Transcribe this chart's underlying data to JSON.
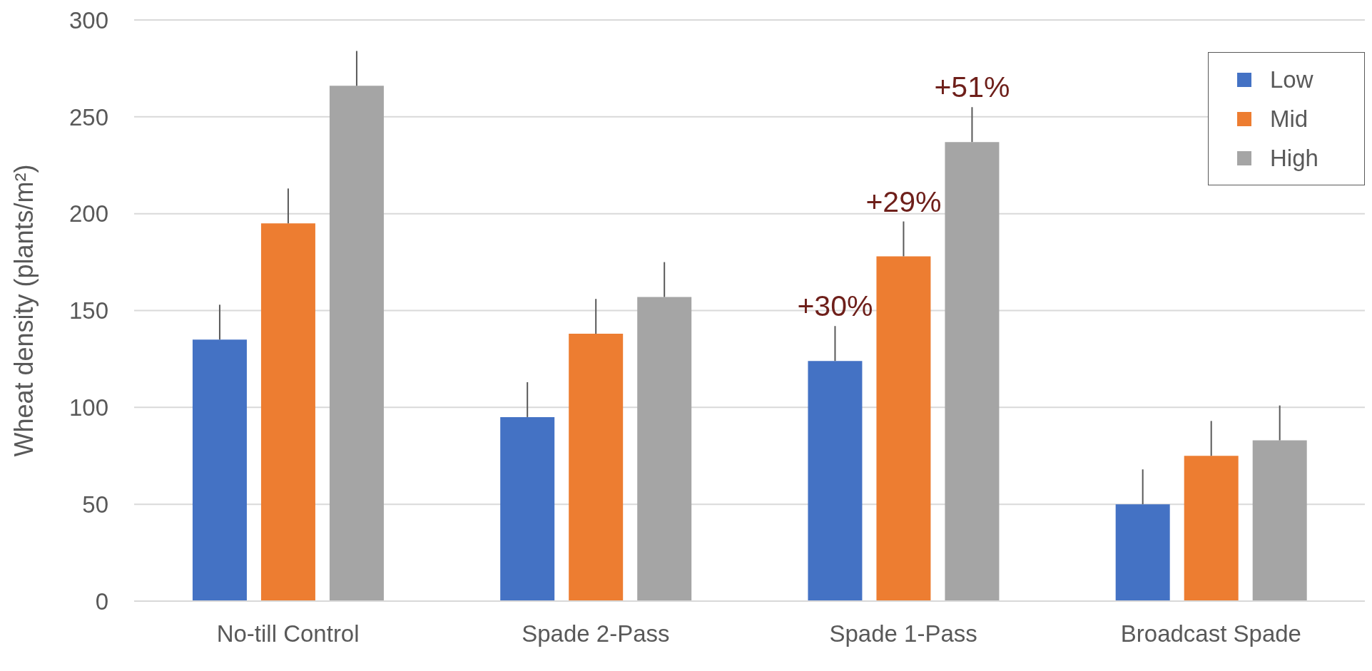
{
  "chart_data": {
    "type": "bar",
    "ylabel": "Wheat density (plants/m²)",
    "categories": [
      "No-till Control",
      "Spade 2-Pass",
      "Spade 1-Pass",
      "Broadcast Spade"
    ],
    "series": [
      {
        "name": "Low",
        "color": "#4472c4",
        "values": [
          135,
          95,
          124,
          50
        ],
        "errors": [
          [
            135,
            153
          ],
          [
            95,
            113
          ],
          [
            124,
            142
          ],
          [
            50,
            68
          ]
        ]
      },
      {
        "name": "Mid",
        "color": "#ed7d31",
        "values": [
          195,
          138,
          178,
          75
        ],
        "errors": [
          [
            195,
            213
          ],
          [
            138,
            156
          ],
          [
            178,
            196
          ],
          [
            75,
            93
          ]
        ]
      },
      {
        "name": "High",
        "color": "#a5a5a5",
        "values": [
          266,
          157,
          237,
          83
        ],
        "errors": [
          [
            266,
            284
          ],
          [
            157,
            175
          ],
          [
            237,
            255
          ],
          [
            83,
            101
          ]
        ]
      }
    ],
    "annotations": [
      "+30%",
      "+29%",
      "+51%"
    ],
    "ylim": [
      0,
      300
    ],
    "yticks": [
      0,
      50,
      100,
      150,
      200,
      250,
      300
    ],
    "grid": "y",
    "legend": "top right"
  }
}
